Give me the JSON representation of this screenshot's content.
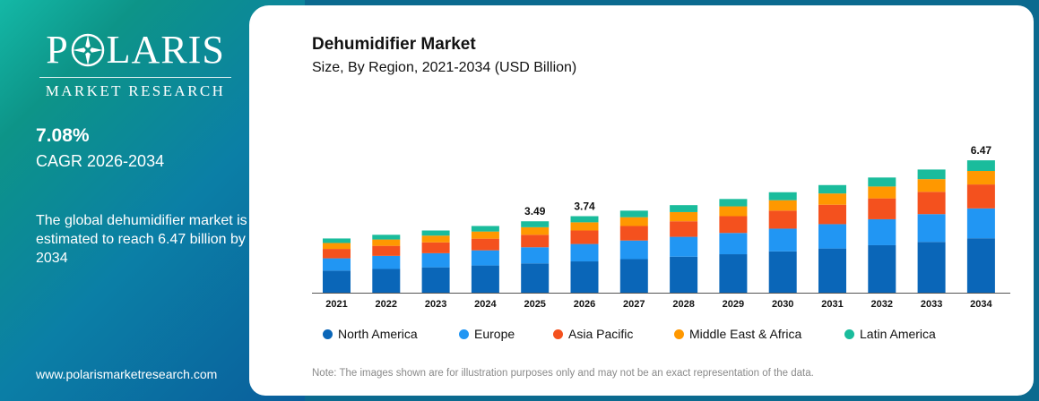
{
  "brand": {
    "name_left": "P",
    "name_right": "LARIS",
    "subtitle": "MARKET RESEARCH",
    "website": "www.polarismarketresearch.com"
  },
  "highlight": {
    "cagr_value": "7.08%",
    "cagr_label": "CAGR 2026-2034",
    "summary": "The global dehumidifier market is estimated to reach 6.47 billion by 2034"
  },
  "chart_data": {
    "type": "bar",
    "stacked": true,
    "title": "Dehumidifier Market",
    "subtitle": "Size, By Region, 2021-2034 (USD Billion)",
    "categories": [
      "2021",
      "2022",
      "2023",
      "2024",
      "2025",
      "2026",
      "2027",
      "2028",
      "2029",
      "2030",
      "2031",
      "2032",
      "2033",
      "2034"
    ],
    "series": [
      {
        "name": "North America",
        "color": "#0a66b8",
        "values": [
          1.08,
          1.16,
          1.24,
          1.33,
          1.43,
          1.53,
          1.64,
          1.76,
          1.88,
          2.02,
          2.16,
          2.32,
          2.48,
          2.66
        ]
      },
      {
        "name": "Europe",
        "color": "#2196f3",
        "values": [
          0.6,
          0.64,
          0.69,
          0.74,
          0.79,
          0.85,
          0.91,
          0.97,
          1.04,
          1.11,
          1.19,
          1.27,
          1.36,
          1.46
        ]
      },
      {
        "name": "Asia Pacific",
        "color": "#f4511e",
        "values": [
          0.46,
          0.49,
          0.53,
          0.57,
          0.61,
          0.66,
          0.71,
          0.76,
          0.82,
          0.88,
          0.95,
          1.02,
          1.09,
          1.17
        ]
      },
      {
        "name": "Middle East & Africa",
        "color": "#ff9800",
        "values": [
          0.29,
          0.31,
          0.33,
          0.35,
          0.37,
          0.4,
          0.43,
          0.45,
          0.48,
          0.51,
          0.55,
          0.58,
          0.62,
          0.66
        ]
      },
      {
        "name": "Latin America",
        "color": "#1abc9c",
        "values": [
          0.22,
          0.23,
          0.25,
          0.27,
          0.29,
          0.3,
          0.32,
          0.34,
          0.36,
          0.39,
          0.41,
          0.44,
          0.47,
          0.52
        ]
      }
    ],
    "data_labels": {
      "2025": "3.49",
      "2026": "3.74",
      "2034": "6.47"
    },
    "ylim": [
      0,
      7.0
    ],
    "grid": false,
    "legend_position": "bottom",
    "note": "Note: The images shown are for illustration purposes only and may not be an exact representation of the data."
  }
}
